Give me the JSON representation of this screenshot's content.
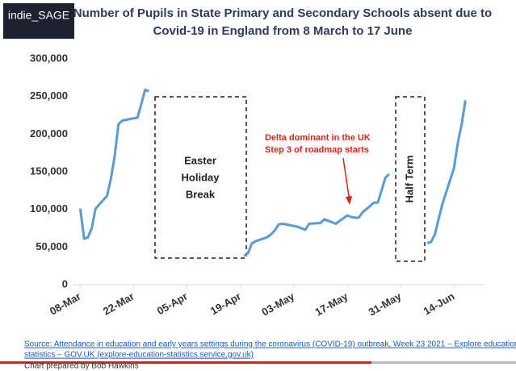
{
  "chart_data": {
    "type": "line",
    "logo": "indie_SAGE",
    "title": [
      "Number of Pupils in State Primary and Secondary Schools absent due to",
      "Covid-19 in England from 8 March to 17 June"
    ],
    "x": [
      "08-Mar",
      "09-Mar",
      "10-Mar",
      "11-Mar",
      "12-Mar",
      "15-Mar",
      "16-Mar",
      "17-Mar",
      "18-Mar",
      "19-Mar",
      "22-Mar",
      "23-Mar",
      "24-Mar",
      "25-Mar",
      "26-Mar",
      "05-Apr",
      "20-Apr",
      "21-Apr",
      "22-Apr",
      "23-Apr",
      "26-Apr",
      "27-Apr",
      "28-Apr",
      "29-Apr",
      "30-Apr",
      "04-May",
      "05-May",
      "06-May",
      "07-May",
      "10-May",
      "11-May",
      "12-May",
      "13-May",
      "14-May",
      "17-May",
      "18-May",
      "19-May",
      "20-May",
      "21-May",
      "24-May",
      "25-May",
      "26-May",
      "27-May",
      "28-May",
      "31-May",
      "07-Jun",
      "08-Jun",
      "09-Jun",
      "10-Jun",
      "11-Jun",
      "14-Jun",
      "15-Jun",
      "16-Jun",
      "17-Jun"
    ],
    "values": [
      101000,
      61000,
      63000,
      75000,
      101000,
      118000,
      140000,
      170000,
      213000,
      218000,
      221000,
      222000,
      240000,
      259000,
      257000,
      null,
      38000,
      42000,
      55000,
      58000,
      63000,
      67000,
      72000,
      80000,
      81000,
      77000,
      75000,
      73000,
      81000,
      82000,
      87000,
      85000,
      83000,
      81000,
      92000,
      90000,
      89000,
      89000,
      96000,
      109000,
      109000,
      125000,
      142000,
      147000,
      null,
      55000,
      57000,
      67000,
      88000,
      108000,
      155000,
      188000,
      213000,
      245000
    ],
    "color": "#5b9bd5",
    "xlim": [
      "06-Mar",
      "22-Jun"
    ],
    "xticks": [
      "08-Mar",
      "22-Mar",
      "05-Apr",
      "19-Apr",
      "03-May",
      "17-May",
      "31-May",
      "14-Jun"
    ],
    "ylim": [
      0,
      300000
    ],
    "yticks": [
      0,
      {
        "value": 50000,
        "label": "50,000"
      },
      {
        "value": 100000,
        "label": "100,000"
      },
      {
        "value": 150000,
        "label": "150,000"
      },
      {
        "value": 200000,
        "label": "200,000"
      },
      {
        "value": 250000,
        "label": "250,000"
      },
      {
        "value": 300000,
        "label": "300,000"
      }
    ],
    "annotations": {
      "easter": [
        "Easter",
        "Holiday",
        "Break"
      ],
      "half_term": "Half Term",
      "delta": [
        "Delta dominant in the UK",
        "Step 3 of roadmap starts"
      ]
    },
    "source": [
      "Source: Attendance in education and early years settings during the coronavirus (COVID-19) outbreak, Week 23 2021 – Explore education",
      "statistics – GOV.UK (explore-education-statistics.service.gov.uk)"
    ],
    "credit": "Chart prepared by Bob Hawkins"
  }
}
